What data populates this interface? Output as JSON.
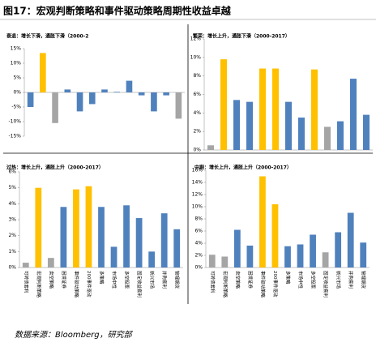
{
  "header": {
    "title": "图17：宏观判断策略和事件驱动策略周期性收益卓越"
  },
  "chart_data": [
    {
      "type": "bar",
      "title": "衰退：增长下滑，通胀下滑（2000-2",
      "values": [
        -5,
        13.5,
        -10.5,
        1,
        -6.5,
        -4,
        1,
        0.2,
        4,
        -1,
        -6.5,
        -1,
        -9
      ],
      "colors": [
        "#4f81bd",
        "#ffc000",
        "#a5a5a5",
        "#4f81bd",
        "#4f81bd",
        "#4f81bd",
        "#4f81bd",
        "#4f81bd",
        "#4f81bd",
        "#4f81bd",
        "#4f81bd",
        "#4f81bd",
        "#a5a5a5"
      ],
      "ylim": [
        -15,
        15
      ],
      "yticks": [
        {
          "value": -15,
          "label": "-15%"
        },
        {
          "value": -10,
          "label": "-10%"
        },
        {
          "value": -5,
          "label": "-5%"
        },
        {
          "value": 0,
          "label": "0%"
        },
        {
          "value": 5,
          "label": "5%"
        },
        {
          "value": 10,
          "label": "10%"
        },
        {
          "value": 15,
          "label": "15%"
        }
      ]
    },
    {
      "type": "bar",
      "title": "繁荣：增长上升，通胀下滑（2000-2017）",
      "values": [
        0.5,
        9.8,
        5.4,
        5.2,
        8.8,
        8.8,
        5.2,
        3.5,
        8.7,
        2.5,
        3.1,
        7.7,
        3.8
      ],
      "colors": [
        "#a5a5a5",
        "#ffc000",
        "#4f81bd",
        "#4f81bd",
        "#ffc000",
        "#ffc000",
        "#4f81bd",
        "#4f81bd",
        "#ffc000",
        "#a5a5a5",
        "#4f81bd",
        "#4f81bd",
        "#4f81bd"
      ],
      "ylim": [
        0,
        12
      ],
      "yticks": [
        {
          "value": 0,
          "label": "0%"
        },
        {
          "value": 2,
          "label": "2%"
        },
        {
          "value": 4,
          "label": "4%"
        },
        {
          "value": 6,
          "label": "6%"
        },
        {
          "value": 8,
          "label": "8%"
        },
        {
          "value": 10,
          "label": "10%"
        },
        {
          "value": 12,
          "label": "12%"
        }
      ]
    },
    {
      "type": "bar",
      "title": "过热：增长上升，通胀上升（2000-2017）",
      "categories": [
        "可转债套利",
        "宏观判断策略",
        "卖空策略",
        "困境证券",
        "事件驱动策略",
        "200事件驱动",
        "多策略",
        "市场中性",
        "多空股票",
        "固定收益套利",
        "新兴市场",
        "并购套利",
        "管理期货"
      ],
      "values": [
        0.3,
        5.0,
        0.6,
        3.8,
        4.9,
        5.1,
        3.8,
        1.3,
        3.9,
        3.1,
        1.0,
        3.4,
        2.4
      ],
      "colors": [
        "#a5a5a5",
        "#ffc000",
        "#a5a5a5",
        "#4f81bd",
        "#ffc000",
        "#ffc000",
        "#4f81bd",
        "#4f81bd",
        "#4f81bd",
        "#4f81bd",
        "#4f81bd",
        "#4f81bd",
        "#4f81bd"
      ],
      "ylim": [
        0,
        6
      ],
      "yticks": [
        {
          "value": 0,
          "label": "0%"
        },
        {
          "value": 1,
          "label": "1%"
        },
        {
          "value": 2,
          "label": "2%"
        },
        {
          "value": 3,
          "label": "3%"
        },
        {
          "value": 4,
          "label": "4%"
        },
        {
          "value": 5,
          "label": "5%"
        },
        {
          "value": 6,
          "label": "6%"
        }
      ]
    },
    {
      "type": "bar",
      "title": "中期：增长上升，通胀上升（2000-2017）",
      "categories": [
        "可转债套利",
        "宏观判断策略",
        "卖空策略",
        "困境证券",
        "事件驱动策略",
        "200事件驱动",
        "多策略",
        "市场中性",
        "多空股票",
        "固定收益套利",
        "新兴市场",
        "并购套利",
        "管理期货"
      ],
      "values": [
        2.1,
        1.8,
        6.2,
        3.6,
        15,
        10.4,
        3.5,
        3.8,
        5.4,
        2.5,
        5.8,
        9.0,
        4.1
      ],
      "colors": [
        "#a5a5a5",
        "#a5a5a5",
        "#4f81bd",
        "#4f81bd",
        "#ffc000",
        "#ffc000",
        "#4f81bd",
        "#4f81bd",
        "#4f81bd",
        "#a5a5a5",
        "#4f81bd",
        "#4f81bd",
        "#4f81bd"
      ],
      "ylim": [
        0,
        16
      ],
      "yticks": [
        {
          "value": 0,
          "label": "0%"
        },
        {
          "value": 2,
          "label": "2%"
        },
        {
          "value": 4,
          "label": "4%"
        },
        {
          "value": 6,
          "label": "6%"
        },
        {
          "value": 8,
          "label": "8%"
        },
        {
          "value": 10,
          "label": "10%"
        },
        {
          "value": 12,
          "label": "12%"
        },
        {
          "value": 14,
          "label": "14%"
        },
        {
          "value": 16,
          "label": "16%"
        }
      ]
    }
  ],
  "footer": {
    "source": "数据来源：Bloomberg，研究部"
  }
}
